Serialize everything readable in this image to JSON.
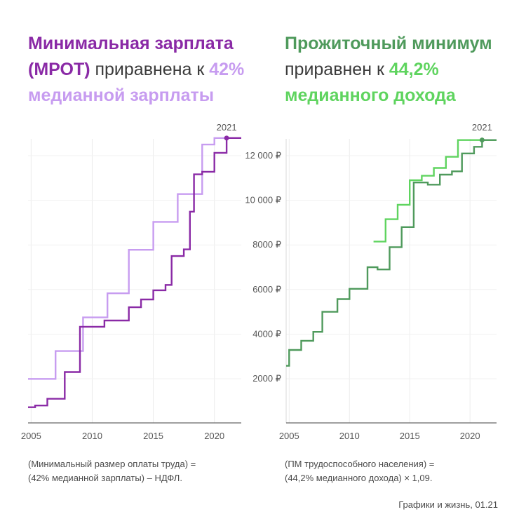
{
  "left_title": {
    "part1": "Минимальная зарплата",
    "part2": "(МРОТ)",
    "part3": " приравнена к ",
    "part4": "42%",
    "part5": "медианной зарплаты"
  },
  "right_title": {
    "part1": "Прожиточный минимум",
    "part2": "приравнен к ",
    "part3": "44,2%",
    "part4": "медианного дохода"
  },
  "left_formula": {
    "line1": "(Минимальный размер оплаты труда) =",
    "line2": "(42% медианной зарплаты) – НДФЛ."
  },
  "right_formula": {
    "line1": "(ПМ трудоспособного населения) =",
    "line2": "(44,2% медианного дохода) × 1,09."
  },
  "credit": "Графики и жизнь, 01.21",
  "colors": {
    "mrot": "#8a2aa6",
    "mrot_42": "#c79cf0",
    "pm": "#4f9a5c",
    "pm_442": "#5fd45f"
  },
  "chart_data": [
    {
      "type": "line",
      "step": true,
      "annotation": "2021",
      "x_ticks": [
        "2005",
        "2010",
        "2015",
        "2020"
      ],
      "xlim": [
        2004.75,
        2022.2
      ],
      "ylim": [
        0,
        12700
      ],
      "y_ticks": [],
      "grid": true,
      "series": [
        {
          "role": "mrot",
          "points": [
            [
              2004.75,
              720
            ],
            [
              2005.33,
              800
            ],
            [
              2006.33,
              1100
            ],
            [
              2007.75,
              2300
            ],
            [
              2009.0,
              4330
            ],
            [
              2011.0,
              4611
            ],
            [
              2013.0,
              5205
            ],
            [
              2014.0,
              5554
            ],
            [
              2015.0,
              5965
            ],
            [
              2016.0,
              6204
            ],
            [
              2016.5,
              7500
            ],
            [
              2017.5,
              7800
            ],
            [
              2018.0,
              9489
            ],
            [
              2018.33,
              11163
            ],
            [
              2019.0,
              11280
            ],
            [
              2020.0,
              12130
            ],
            [
              2021.0,
              12792
            ],
            [
              2022.2,
              12792
            ]
          ]
        },
        {
          "role": "mrot_42",
          "points": [
            [
              2004.75,
              1990
            ],
            [
              2007.0,
              3240
            ],
            [
              2009.25,
              4750
            ],
            [
              2011.25,
              5830
            ],
            [
              2013.0,
              7780
            ],
            [
              2015.0,
              9030
            ],
            [
              2017.0,
              10280
            ],
            [
              2019.0,
              12500
            ],
            [
              2020.0,
              12792
            ],
            [
              2021.0,
              12792
            ],
            [
              2022.2,
              12792
            ]
          ]
        }
      ]
    },
    {
      "type": "line",
      "step": true,
      "annotation": "2021",
      "x_ticks": [
        "2005",
        "2010",
        "2015",
        "2020"
      ],
      "xlim": [
        2004.75,
        2022.2
      ],
      "ylim": [
        0,
        12700
      ],
      "y_ticks": [
        "2000 ₽",
        "4000 ₽",
        "6000 ₽",
        "8000 ₽",
        "10 000 ₽",
        "12 000 ₽"
      ],
      "grid": true,
      "series": [
        {
          "role": "pm",
          "points": [
            [
              2004.75,
              2580
            ],
            [
              2005.0,
              3290
            ],
            [
              2006.0,
              3700
            ],
            [
              2007.0,
              4100
            ],
            [
              2007.75,
              5000
            ],
            [
              2009.0,
              5570
            ],
            [
              2010.0,
              6030
            ],
            [
              2011.5,
              7000
            ],
            [
              2012.33,
              6900
            ],
            [
              2013.33,
              7900
            ],
            [
              2014.33,
              8800
            ],
            [
              2015.33,
              10800
            ],
            [
              2016.5,
              10700
            ],
            [
              2017.5,
              11150
            ],
            [
              2018.5,
              11300
            ],
            [
              2019.33,
              12100
            ],
            [
              2020.33,
              12400
            ],
            [
              2021.0,
              12702
            ],
            [
              2022.2,
              12702
            ]
          ]
        },
        {
          "role": "pm_442",
          "points": [
            [
              2012.0,
              8150
            ],
            [
              2013.0,
              9150
            ],
            [
              2014.0,
              9800
            ],
            [
              2015.0,
              10900
            ],
            [
              2016.0,
              11100
            ],
            [
              2017.0,
              11450
            ],
            [
              2018.0,
              11950
            ],
            [
              2019.0,
              12700
            ],
            [
              2020.0,
              12702
            ],
            [
              2021.0,
              12702
            ],
            [
              2022.2,
              12702
            ]
          ]
        }
      ]
    }
  ]
}
